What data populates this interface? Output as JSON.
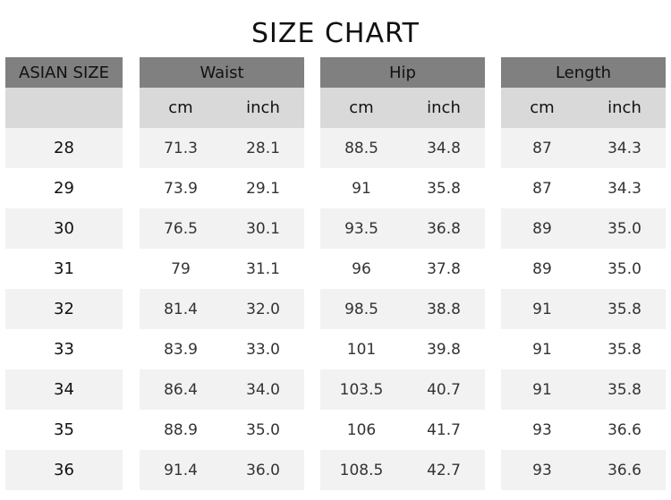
{
  "title": "SIZE CHART",
  "size_header": "ASIAN  SIZE",
  "groups": [
    {
      "label": "Waist",
      "units": [
        "cm",
        "inch"
      ]
    },
    {
      "label": "Hip",
      "units": [
        "cm",
        "inch"
      ]
    },
    {
      "label": "Length",
      "units": [
        "cm",
        "inch"
      ]
    }
  ],
  "colors": {
    "header": "#808080",
    "subheader": "#d9d9d9",
    "stripe": "#f2f2f2"
  },
  "rows": [
    {
      "size": "28",
      "values": [
        [
          "71.3",
          "28.1"
        ],
        [
          "88.5",
          "34.8"
        ],
        [
          "87",
          "34.3"
        ]
      ]
    },
    {
      "size": "29",
      "values": [
        [
          "73.9",
          "29.1"
        ],
        [
          "91",
          "35.8"
        ],
        [
          "87",
          "34.3"
        ]
      ]
    },
    {
      "size": "30",
      "values": [
        [
          "76.5",
          "30.1"
        ],
        [
          "93.5",
          "36.8"
        ],
        [
          "89",
          "35.0"
        ]
      ]
    },
    {
      "size": "31",
      "values": [
        [
          "79",
          "31.1"
        ],
        [
          "96",
          "37.8"
        ],
        [
          "89",
          "35.0"
        ]
      ]
    },
    {
      "size": "32",
      "values": [
        [
          "81.4",
          "32.0"
        ],
        [
          "98.5",
          "38.8"
        ],
        [
          "91",
          "35.8"
        ]
      ]
    },
    {
      "size": "33",
      "values": [
        [
          "83.9",
          "33.0"
        ],
        [
          "101",
          "39.8"
        ],
        [
          "91",
          "35.8"
        ]
      ]
    },
    {
      "size": "34",
      "values": [
        [
          "86.4",
          "34.0"
        ],
        [
          "103.5",
          "40.7"
        ],
        [
          "91",
          "35.8"
        ]
      ]
    },
    {
      "size": "35",
      "values": [
        [
          "88.9",
          "35.0"
        ],
        [
          "106",
          "41.7"
        ],
        [
          "93",
          "36.6"
        ]
      ]
    },
    {
      "size": "36",
      "values": [
        [
          "91.4",
          "36.0"
        ],
        [
          "108.5",
          "42.7"
        ],
        [
          "93",
          "36.6"
        ]
      ]
    }
  ]
}
